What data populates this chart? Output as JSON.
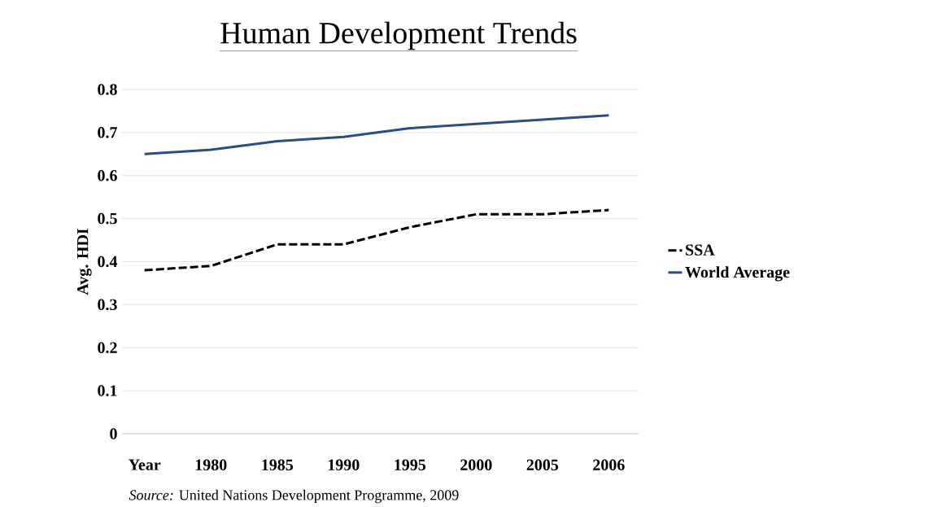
{
  "chart_data": {
    "type": "line",
    "title": "Human Development Trends",
    "ylabel": "Avg. HDI",
    "categories": [
      "Year",
      "1980",
      "1985",
      "1990",
      "1995",
      "2000",
      "2005",
      "2006"
    ],
    "series": [
      {
        "name": "SSA",
        "color": "#000000",
        "line_style": "dashed",
        "values": [
          0.38,
          0.39,
          0.44,
          0.44,
          0.48,
          0.51,
          0.51,
          0.52
        ]
      },
      {
        "name": "World Average",
        "color": "#2a4d8a",
        "line_style": "solid",
        "values": [
          0.65,
          0.66,
          0.68,
          0.69,
          0.71,
          0.72,
          0.73,
          0.74
        ]
      }
    ],
    "ylim": [
      0,
      0.8
    ],
    "yticks": [
      0,
      0.1,
      0.2,
      0.3,
      0.4,
      0.5,
      0.6,
      0.7,
      0.8
    ],
    "grid": "y",
    "legend": "right",
    "marker": "none",
    "annotations": [
      "*Source:* United Nations Development Programme, 2009"
    ]
  }
}
